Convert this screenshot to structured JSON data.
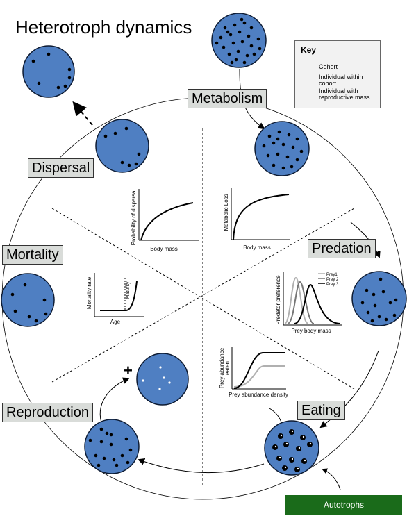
{
  "title": "Heterotroph dynamics",
  "stages": {
    "metabolism": "Metabolism",
    "predation": "Predation",
    "eating": "Eating",
    "reproduction": "Reproduction",
    "mortality": "Mortality",
    "dispersal": "Dispersal"
  },
  "key": {
    "title": "Key",
    "items": [
      "Cohort",
      "Individual within cohort",
      "Individual with reproductive mass"
    ]
  },
  "autotrophs": "Autotrophs",
  "plus_sign": "+",
  "plots": {
    "dispersal": {
      "ylabel": "Probability of dispersal",
      "xlabel": "Body mass"
    },
    "metabolism": {
      "ylabel": "Metabolic Loss",
      "xlabel": "Body mass"
    },
    "mortality": {
      "ylabel": "Mortality rate",
      "xlabel": "Age",
      "annotation": "Maturity"
    },
    "predation": {
      "ylabel": "Predator preference",
      "xlabel": "Prey body mass",
      "legend": [
        "Prey1",
        "Prey 2",
        "Prey 3"
      ]
    },
    "eating": {
      "ylabel_line1": "Prey abundance",
      "ylabel_line2": "eaten",
      "xlabel": "Prey abundance density"
    }
  },
  "colors": {
    "cohort_fill": "#4f7fc2",
    "cohort_stroke": "#0d1b33",
    "label_bg": "#d9dcd9",
    "autotroph_bg": "#1a6b1a",
    "prey_colors": [
      "#b0b0b0",
      "#777777",
      "#000000"
    ]
  }
}
